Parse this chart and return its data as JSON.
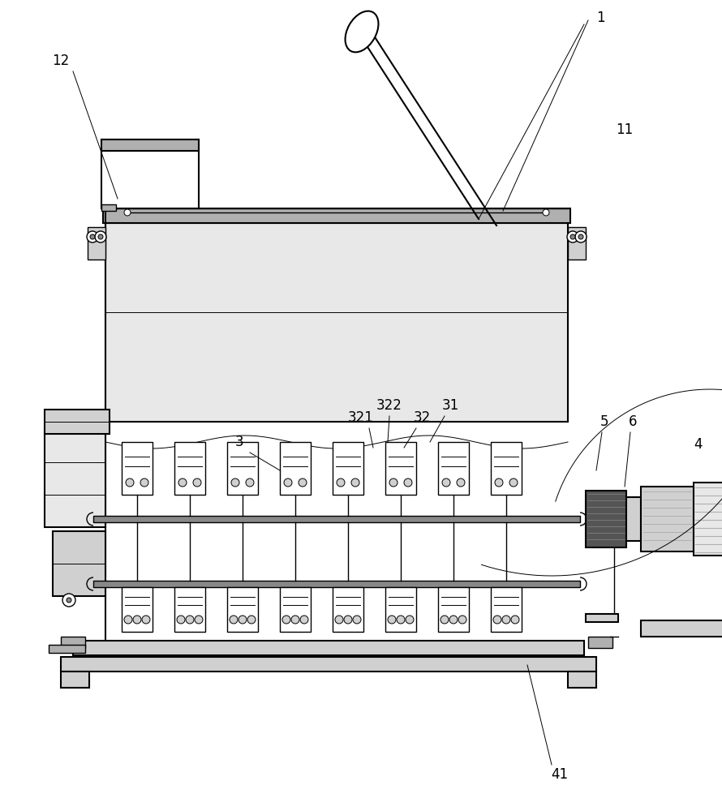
{
  "bg_color": "#ffffff",
  "lc": "#000000",
  "gray1": "#e8e8e8",
  "gray2": "#d0d0d0",
  "gray3": "#b0b0b0",
  "gray4": "#888888",
  "gray5": "#555555",
  "gray6": "#333333",
  "label_fs": 12
}
